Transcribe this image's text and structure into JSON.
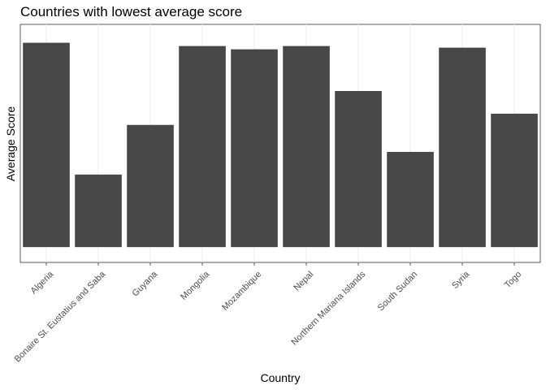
{
  "chart_data": {
    "type": "bar",
    "title": "Countries with lowest average score",
    "xlabel": "Country",
    "ylabel": "Average Score",
    "categories": [
      "Algeria",
      "Bonaire St. Eustatius and Saba",
      "Guyana",
      "Mongolia",
      "Mozambique",
      "Nepal",
      "Northern Mariana Islands",
      "South Sudan",
      "Syria",
      "Togo"
    ],
    "values": [
      1.0,
      0.355,
      0.598,
      0.984,
      0.968,
      0.984,
      0.764,
      0.466,
      0.976,
      0.653
    ],
    "ylim": [
      -0.075,
      1.09
    ],
    "y_ticks_shown": false,
    "grid": "vertical-major",
    "bar_color": "#474747",
    "legend": "none"
  }
}
